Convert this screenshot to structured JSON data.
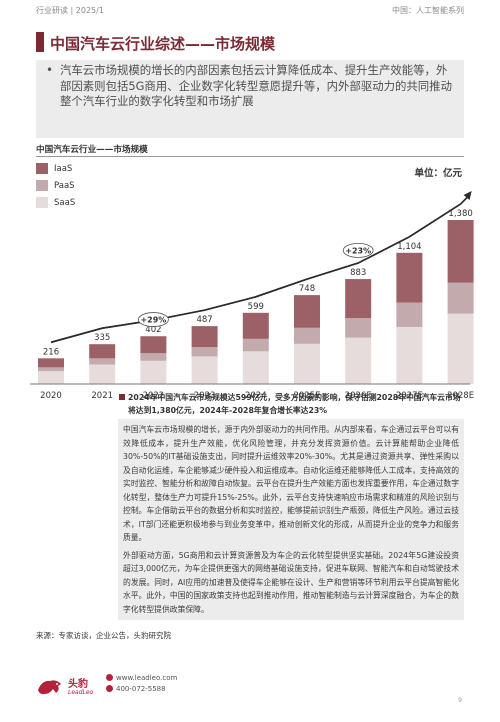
{
  "header": {
    "left": "行业研读 | 2025/1",
    "right": "中国：人工智能系列"
  },
  "title": "中国汽车云行业综述——市场规模",
  "intro": {
    "bullet": "•",
    "text": "汽车云市场规模的增长的内部因素包括云计算降低成本、提升生产效能等，外部因素则包括5G商用、企业数字化转型意愿提升等，内外部驱动力的共同推动整个汽车行业的数字化转型和市场扩展"
  },
  "chart": {
    "heading": "中国汽车云行业——市场规模",
    "unit": "单位：亿元",
    "legend": [
      {
        "label": "IaaS",
        "color": "#9c6166"
      },
      {
        "label": "PaaS",
        "color": "#c2aaad"
      },
      {
        "label": "SaaS",
        "color": "#e6dcdc"
      }
    ],
    "growth_labels": [
      "+29%",
      "+23%"
    ]
  },
  "chart_data": {
    "type": "bar",
    "stacked": true,
    "categories": [
      "2020",
      "2021",
      "2022",
      "2023",
      "2024",
      "2025E",
      "2026E",
      "2027E",
      "2028E"
    ],
    "totals": [
      216,
      335,
      402,
      487,
      599,
      748,
      883,
      1104,
      1380
    ],
    "total_labels": [
      "216",
      "335",
      "402",
      "487",
      "599",
      "748",
      "883",
      "1,104",
      "1,380"
    ],
    "series": [
      {
        "name": "SaaS",
        "values": [
          108,
          164,
          195,
          232,
          275,
          338,
          390,
          480,
          592
        ]
      },
      {
        "name": "PaaS",
        "values": [
          32,
          52,
          64,
          78,
          105,
          135,
          165,
          205,
          260
        ]
      },
      {
        "name": "IaaS",
        "values": [
          76,
          119,
          143,
          177,
          219,
          275,
          328,
          419,
          528
        ]
      }
    ],
    "annotations": [
      {
        "label": "+29%",
        "from": "2020",
        "to": "2024"
      },
      {
        "label": "+23%",
        "from": "2024",
        "to": "2028E"
      }
    ],
    "ylabel": "单位：亿元",
    "ylim": [
      0,
      1400
    ],
    "grid": false,
    "legend_position": "top-left"
  },
  "summary": "2024年中国汽车云市场规模达599亿元，受多方因素的影响，保守估测2028年中国汽车云市场将达到1,380亿元，2024年-2028年复合增长率达23%",
  "body": {
    "p1": "中国汽车云市场规模的增长，源于内外部驱动力的共同作用。从内部来看，车企通过云平台可以有效降低成本，提升生产效能，优化风险管理，并充分发挥资源价值。云计算能帮助企业降低30%-50%的IT基础设施支出，同时提升运维效率20%-30%。尤其是通过资源共享、弹性采购以及自动化运维，车企能够减少硬件投入和运维成本。自动化运维还能够降低人工成本，支持高效的实时监控、智能分析和故障自动恢复。云平台在提升生产效能方面也发挥重要作用，车企通过数字化转型，整体生产力可提升15%-25%。此外，云平台支持快速响应市场需求和精准的风险识别与控制。车企借助云平台的数据分析和实时监控，能够提前识别生产瓶颈，降低生产风险。通过云技术，IT部门还能更积极地参与到业务变革中，推动创新文化的形成，从而提升企业的竞争力和服务质量。",
    "p2": "外部驱动方面，5G商用和云计算资源普及为车企的云化转型提供坚实基础。2024年5G建设投资超过3,000亿元，为车企提供更强大的网络基础设施支持，促进车联网、智能汽车和自动驾驶技术的发展。同时，AI应用的加速普及使得车企能够在设计、生产和营销等环节利用云平台提高智能化水平。此外，中国的国家政策支持也起到推动作用，推动智能制造与云计算深度融合，为车企的数字化转型提供政策保障。"
  },
  "source": "来源：专家访谈，企业公告，头豹研究院",
  "footer": {
    "brand": "头豹",
    "brand_sub": "LeadLeo",
    "url": "www.leadleo.com",
    "phone": "400-072-5588",
    "page": "9"
  }
}
